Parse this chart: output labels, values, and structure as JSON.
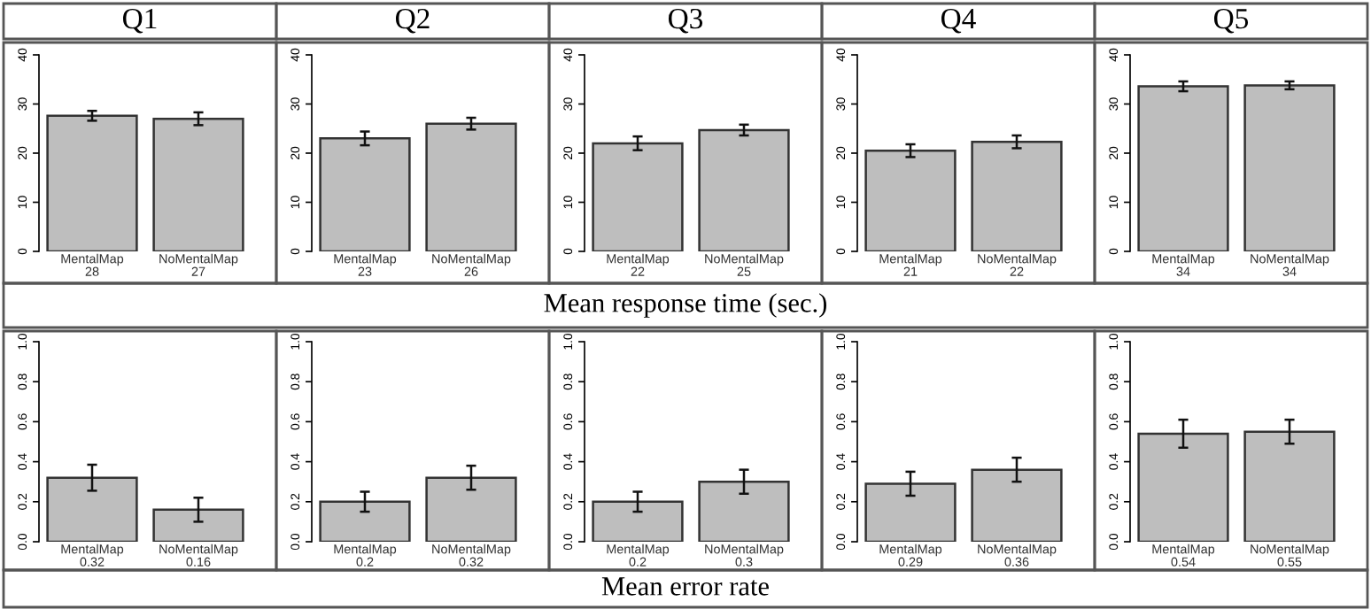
{
  "chart_data": [
    {
      "type": "bar",
      "title": "Q1",
      "annotations": [
        "Mean response time (sec.)"
      ],
      "categories": [
        "MentalMap",
        "NoMentalMap"
      ],
      "values": [
        27.6,
        27.0
      ],
      "errors": [
        1.0,
        1.3
      ],
      "value_labels": [
        "28",
        "27"
      ],
      "color": "#bebebe",
      "ylim": [
        0,
        40
      ],
      "yticks": [
        0,
        10,
        20,
        30,
        40
      ],
      "grid": false,
      "legend": false
    },
    {
      "type": "bar",
      "title": "Q2",
      "categories": [
        "MentalMap",
        "NoMentalMap"
      ],
      "values": [
        23.0,
        26.0
      ],
      "errors": [
        1.4,
        1.2
      ],
      "value_labels": [
        "23",
        "26"
      ],
      "color": "#bebebe",
      "ylim": [
        0,
        40
      ],
      "yticks": [
        0,
        10,
        20,
        30,
        40
      ],
      "grid": false,
      "legend": false
    },
    {
      "type": "bar",
      "title": "Q3",
      "categories": [
        "MentalMap",
        "NoMentalMap"
      ],
      "values": [
        22.0,
        24.7
      ],
      "errors": [
        1.4,
        1.1
      ],
      "value_labels": [
        "22",
        "25"
      ],
      "color": "#bebebe",
      "ylim": [
        0,
        40
      ],
      "yticks": [
        0,
        10,
        20,
        30,
        40
      ],
      "grid": false,
      "legend": false
    },
    {
      "type": "bar",
      "title": "Q4",
      "categories": [
        "MentalMap",
        "NoMentalMap"
      ],
      "values": [
        20.5,
        22.3
      ],
      "errors": [
        1.3,
        1.3
      ],
      "value_labels": [
        "21",
        "22"
      ],
      "color": "#bebebe",
      "ylim": [
        0,
        40
      ],
      "yticks": [
        0,
        10,
        20,
        30,
        40
      ],
      "grid": false,
      "legend": false
    },
    {
      "type": "bar",
      "title": "Q5",
      "categories": [
        "MentalMap",
        "NoMentalMap"
      ],
      "values": [
        33.6,
        33.8
      ],
      "errors": [
        1.0,
        0.8
      ],
      "value_labels": [
        "34",
        "34"
      ],
      "color": "#bebebe",
      "ylim": [
        0,
        40
      ],
      "yticks": [
        0,
        10,
        20,
        30,
        40
      ],
      "grid": false,
      "legend": false
    },
    {
      "type": "bar",
      "annotations": [
        "Mean error rate"
      ],
      "categories": [
        "MentalMap",
        "NoMentalMap"
      ],
      "values": [
        0.32,
        0.16
      ],
      "errors": [
        0.065,
        0.06
      ],
      "value_labels": [
        "0.32",
        "0.16"
      ],
      "color": "#bebebe",
      "ylim": [
        0,
        1
      ],
      "yticks": [
        {
          "value": 0,
          "label": "0.0"
        },
        {
          "value": 0.2,
          "label": "0.2"
        },
        {
          "value": 0.4,
          "label": "0.4"
        },
        {
          "value": 0.6,
          "label": "0.6"
        },
        {
          "value": 0.8,
          "label": "0.8"
        },
        {
          "value": 1,
          "label": "1.0"
        }
      ],
      "grid": false,
      "legend": false
    },
    {
      "type": "bar",
      "categories": [
        "MentalMap",
        "NoMentalMap"
      ],
      "values": [
        0.2,
        0.32
      ],
      "errors": [
        0.05,
        0.06
      ],
      "value_labels": [
        "0.2",
        "0.32"
      ],
      "color": "#bebebe",
      "ylim": [
        0,
        1
      ],
      "yticks": [
        {
          "value": 0,
          "label": "0.0"
        },
        {
          "value": 0.2,
          "label": "0.2"
        },
        {
          "value": 0.4,
          "label": "0.4"
        },
        {
          "value": 0.6,
          "label": "0.6"
        },
        {
          "value": 0.8,
          "label": "0.8"
        },
        {
          "value": 1,
          "label": "1.0"
        }
      ],
      "grid": false,
      "legend": false
    },
    {
      "type": "bar",
      "categories": [
        "MentalMap",
        "NoMentalMap"
      ],
      "values": [
        0.2,
        0.3
      ],
      "errors": [
        0.05,
        0.06
      ],
      "value_labels": [
        "0.2",
        "0.3"
      ],
      "color": "#bebebe",
      "ylim": [
        0,
        1
      ],
      "yticks": [
        {
          "value": 0,
          "label": "0.0"
        },
        {
          "value": 0.2,
          "label": "0.2"
        },
        {
          "value": 0.4,
          "label": "0.4"
        },
        {
          "value": 0.6,
          "label": "0.6"
        },
        {
          "value": 0.8,
          "label": "0.8"
        },
        {
          "value": 1,
          "label": "1.0"
        }
      ],
      "grid": false,
      "legend": false
    },
    {
      "type": "bar",
      "categories": [
        "MentalMap",
        "NoMentalMap"
      ],
      "values": [
        0.29,
        0.36
      ],
      "errors": [
        0.06,
        0.06
      ],
      "value_labels": [
        "0.29",
        "0.36"
      ],
      "color": "#bebebe",
      "ylim": [
        0,
        1
      ],
      "yticks": [
        {
          "value": 0,
          "label": "0.0"
        },
        {
          "value": 0.2,
          "label": "0.2"
        },
        {
          "value": 0.4,
          "label": "0.4"
        },
        {
          "value": 0.6,
          "label": "0.6"
        },
        {
          "value": 0.8,
          "label": "0.8"
        },
        {
          "value": 1,
          "label": "1.0"
        }
      ],
      "grid": false,
      "legend": false
    },
    {
      "type": "bar",
      "categories": [
        "MentalMap",
        "NoMentalMap"
      ],
      "values": [
        0.54,
        0.55
      ],
      "errors": [
        0.07,
        0.06
      ],
      "value_labels": [
        "0.54",
        "0.55"
      ],
      "color": "#bebebe",
      "ylim": [
        0,
        1
      ],
      "yticks": [
        {
          "value": 0,
          "label": "0.0"
        },
        {
          "value": 0.2,
          "label": "0.2"
        },
        {
          "value": 0.4,
          "label": "0.4"
        },
        {
          "value": 0.6,
          "label": "0.6"
        },
        {
          "value": 0.8,
          "label": "0.8"
        },
        {
          "value": 1,
          "label": "1.0"
        }
      ],
      "grid": false,
      "legend": false
    }
  ]
}
